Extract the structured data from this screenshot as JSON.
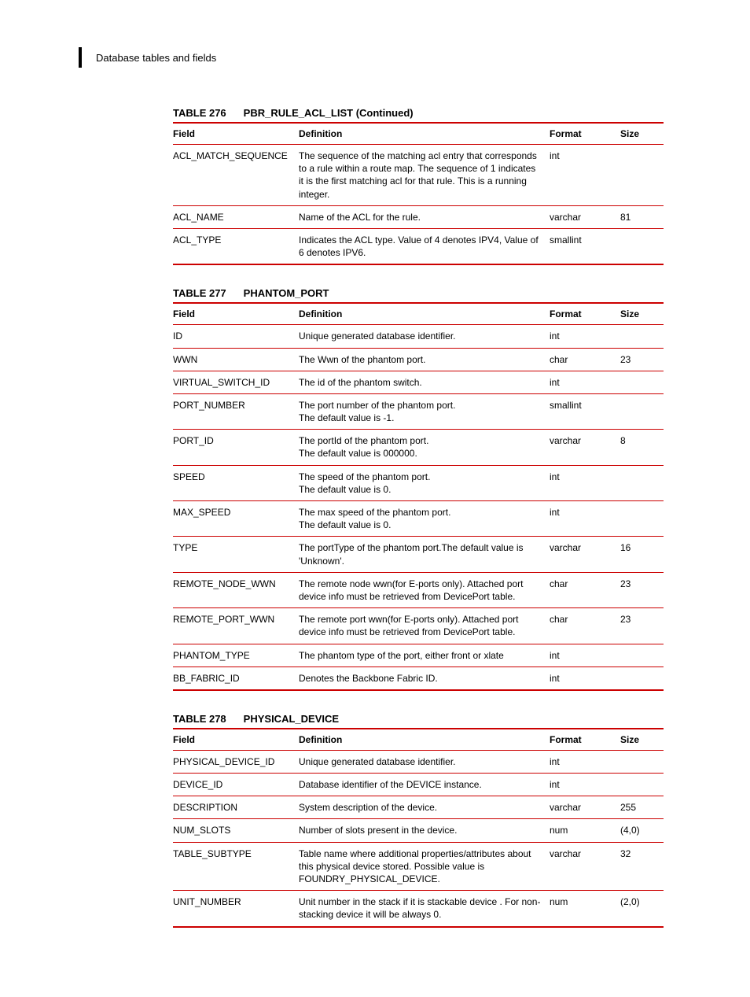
{
  "header": {
    "section_title": "Database tables and fields"
  },
  "columns": {
    "field": "Field",
    "definition": "Definition",
    "format": "Format",
    "size": "Size"
  },
  "tables": [
    {
      "caption_num": "TABLE 276",
      "caption_name": "PBR_RULE_ACL_LIST (Continued)",
      "rows": [
        {
          "field": "ACL_MATCH_SEQUENCE",
          "definition": [
            "The sequence of the matching acl entry that corresponds to a rule within a route map. The sequence of 1 indicates it is the first matching acl for that rule. This is a running integer."
          ],
          "format": "int",
          "size": ""
        },
        {
          "field": "ACL_NAME",
          "definition": [
            "Name of the ACL for the rule."
          ],
          "format": "varchar",
          "size": "81"
        },
        {
          "field": "ACL_TYPE",
          "definition": [
            "Indicates the ACL type. Value of 4 denotes IPV4, Value of 6 denotes IPV6."
          ],
          "format": "smallint",
          "size": ""
        }
      ]
    },
    {
      "caption_num": "TABLE 277",
      "caption_name": "PHANTOM_PORT",
      "rows": [
        {
          "field": "ID",
          "definition": [
            "Unique generated database identifier."
          ],
          "format": "int",
          "size": ""
        },
        {
          "field": "WWN",
          "definition": [
            "The Wwn of the phantom port."
          ],
          "format": "char",
          "size": "23"
        },
        {
          "field": "VIRTUAL_SWITCH_ID",
          "definition": [
            "The id of the phantom switch."
          ],
          "format": "int",
          "size": ""
        },
        {
          "field": "PORT_NUMBER",
          "definition": [
            "The port number of the phantom port.",
            "The default value is -1."
          ],
          "format": "smallint",
          "size": ""
        },
        {
          "field": "PORT_ID",
          "definition": [
            "The portId of the phantom port.",
            "The default value is 000000."
          ],
          "format": "varchar",
          "size": "8"
        },
        {
          "field": "SPEED",
          "definition": [
            "The speed of the phantom port.",
            "The default value is 0."
          ],
          "format": "int",
          "size": ""
        },
        {
          "field": "MAX_SPEED",
          "definition": [
            "The max speed of the phantom port.",
            "The default value is 0."
          ],
          "format": "int",
          "size": ""
        },
        {
          "field": "TYPE",
          "definition": [
            "The portType of the phantom port.The default value is 'Unknown'."
          ],
          "format": "varchar",
          "size": "16"
        },
        {
          "field": "REMOTE_NODE_WWN",
          "definition": [
            "The remote node wwn(for E-ports only). Attached port device info must be retrieved from DevicePort table."
          ],
          "format": "char",
          "size": "23"
        },
        {
          "field": "REMOTE_PORT_WWN",
          "definition": [
            "The remote port wwn(for E-ports only). Attached port device info must be retrieved from DevicePort table."
          ],
          "format": "char",
          "size": "23"
        },
        {
          "field": "PHANTOM_TYPE",
          "definition": [
            "The phantom type of the port, either front or xlate"
          ],
          "format": "int",
          "size": ""
        },
        {
          "field": "BB_FABRIC_ID",
          "definition": [
            "Denotes the Backbone Fabric ID."
          ],
          "format": "int",
          "size": ""
        }
      ]
    },
    {
      "caption_num": "TABLE 278",
      "caption_name": "PHYSICAL_DEVICE",
      "rows": [
        {
          "field": "PHYSICAL_DEVICE_ID",
          "definition": [
            "Unique generated database identifier."
          ],
          "format": "int",
          "size": ""
        },
        {
          "field": "DEVICE_ID",
          "definition": [
            "Database identifier of the DEVICE instance."
          ],
          "format": "int",
          "size": ""
        },
        {
          "field": "DESCRIPTION",
          "definition": [
            "System description of the device."
          ],
          "format": "varchar",
          "size": "255"
        },
        {
          "field": "NUM_SLOTS",
          "definition": [
            "Number of slots present in the device."
          ],
          "format": "num",
          "size": "(4,0)"
        },
        {
          "field": "TABLE_SUBTYPE",
          "definition": [
            "Table name where additional properties/attributes about this physical device stored. Possible value is FOUNDRY_PHYSICAL_DEVICE."
          ],
          "format": "varchar",
          "size": "32"
        },
        {
          "field": "UNIT_NUMBER",
          "definition": [
            "Unit number in the stack if it is stackable device . For non-stacking device it will be always 0."
          ],
          "format": "num",
          "size": "(2,0)"
        }
      ]
    }
  ]
}
